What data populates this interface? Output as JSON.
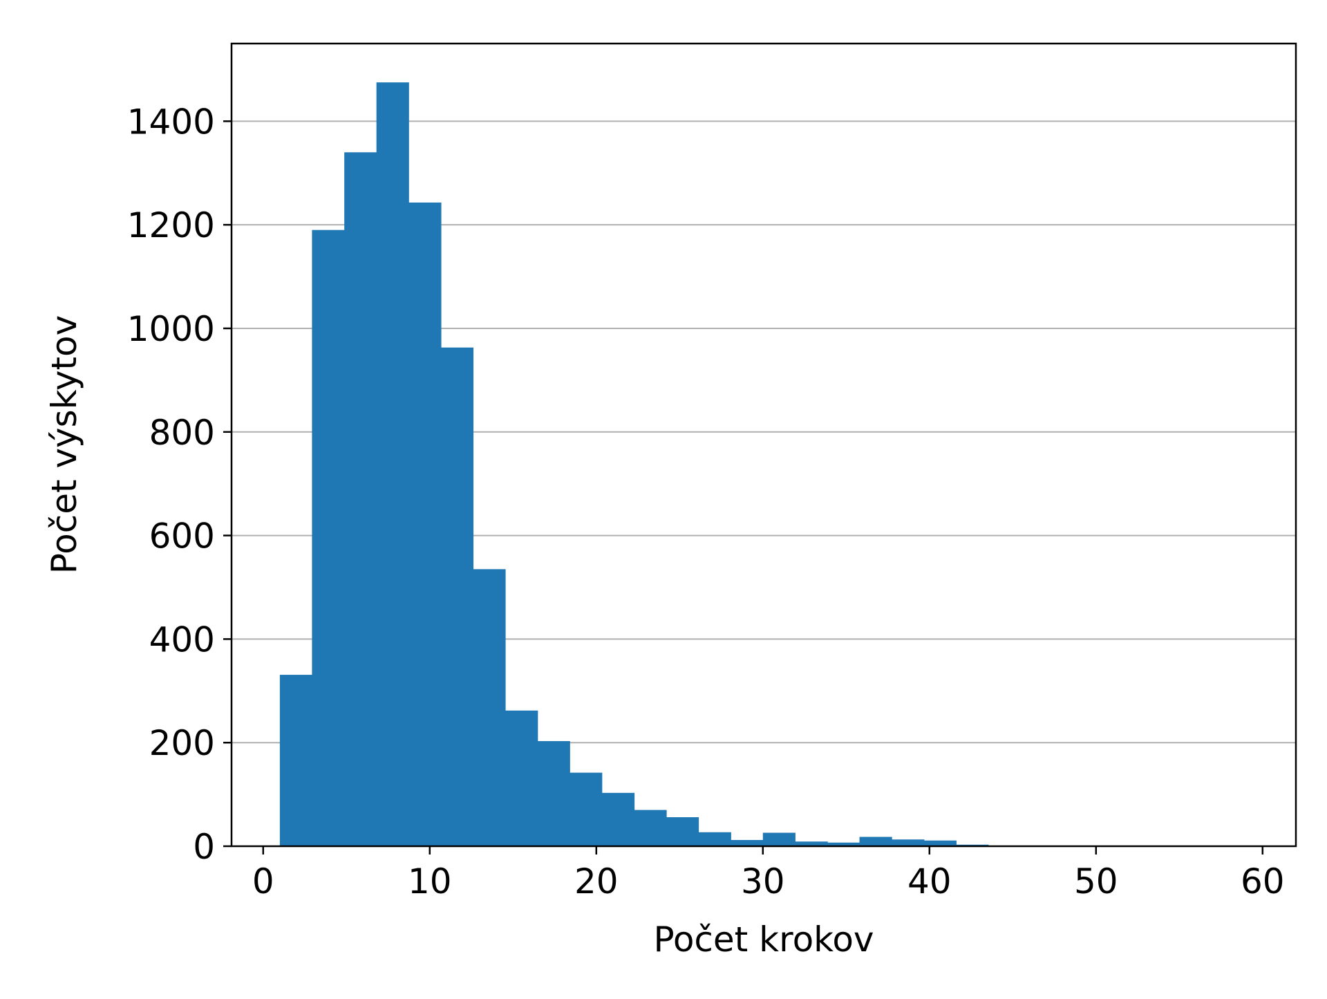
{
  "chart_data": {
    "type": "bar",
    "title": "",
    "xlabel": "Počet krokov",
    "ylabel": "Počet výskytov",
    "xlim": [
      -1.9,
      62.0
    ],
    "ylim": [
      0,
      1550
    ],
    "x_ticks": [
      0,
      10,
      20,
      30,
      40,
      50,
      60
    ],
    "x_tick_labels": [
      "0",
      "10",
      "20",
      "30",
      "40",
      "50",
      "60"
    ],
    "y_ticks": [
      0,
      200,
      400,
      600,
      800,
      1000,
      1200,
      1400
    ],
    "y_tick_labels": [
      "0",
      "200",
      "400",
      "600",
      "800",
      "1000",
      "1200",
      "1400"
    ],
    "grid": {
      "y": true,
      "x": false
    },
    "bin_width": 1.93,
    "bin_edges": [
      1,
      2.93,
      4.87,
      6.8,
      8.73,
      10.67,
      12.6,
      14.53,
      16.47,
      18.4,
      20.33,
      22.27,
      24.2,
      26.13,
      28.07,
      30,
      31.93,
      33.87,
      35.8,
      37.73,
      39.67,
      41.6,
      43.53,
      45.47,
      47.4,
      49.33,
      51.27,
      53.2,
      55.13,
      57.07,
      59
    ],
    "values": [
      331,
      1190,
      1340,
      1475,
      1243,
      963,
      535,
      262,
      203,
      142,
      103,
      70,
      56,
      27,
      12,
      26,
      9,
      7,
      18,
      13,
      11,
      3,
      1,
      0,
      0,
      0,
      0,
      0,
      0,
      0
    ],
    "colors": {
      "bar": "#1f77b4",
      "grid": "#b0b0b0",
      "axes": "#000000"
    }
  }
}
